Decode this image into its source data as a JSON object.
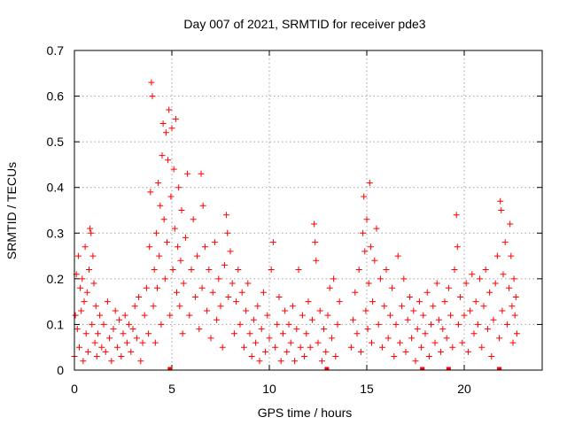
{
  "chart_data": {
    "type": "scatter",
    "title": "Day 007 of 2021, SRMTID for receiver pde3",
    "xlabel": "GPS time / hours",
    "ylabel": "SRMTID / TECUs",
    "xlim": [
      0,
      24
    ],
    "ylim": [
      0,
      0.7
    ],
    "xticks": [
      0,
      5,
      10,
      15,
      20
    ],
    "yticks": [
      0,
      0.1,
      0.2,
      0.3,
      0.4,
      0.5,
      0.6,
      0.7
    ],
    "grid": true,
    "marker": "plus",
    "color": "#ff0000",
    "series": [
      {
        "name": "SRMTID",
        "points": [
          [
            0.0,
            0.03
          ],
          [
            0.05,
            0.12
          ],
          [
            0.1,
            0.21
          ],
          [
            0.15,
            0.09
          ],
          [
            0.2,
            0.25
          ],
          [
            0.25,
            0.05
          ],
          [
            0.3,
            0.18
          ],
          [
            0.35,
            0.13
          ],
          [
            0.4,
            0.2
          ],
          [
            0.45,
            0.02
          ],
          [
            0.5,
            0.15
          ],
          [
            0.55,
            0.27
          ],
          [
            0.6,
            0.08
          ],
          [
            0.65,
            0.17
          ],
          [
            0.7,
            0.04
          ],
          [
            0.75,
            0.22
          ],
          [
            0.8,
            0.31
          ],
          [
            0.85,
            0.3
          ],
          [
            0.9,
            0.1
          ],
          [
            0.95,
            0.25
          ],
          [
            1.0,
            0.19
          ],
          [
            1.05,
            0.06
          ],
          [
            1.1,
            0.14
          ],
          [
            1.15,
            0.03
          ],
          [
            1.2,
            0.08
          ],
          [
            1.3,
            0.12
          ],
          [
            1.4,
            0.05
          ],
          [
            1.5,
            0.1
          ],
          [
            1.6,
            0.04
          ],
          [
            1.7,
            0.15
          ],
          [
            1.8,
            0.07
          ],
          [
            1.9,
            0.02
          ],
          [
            2.0,
            0.09
          ],
          [
            2.1,
            0.13
          ],
          [
            2.2,
            0.05
          ],
          [
            2.3,
            0.11
          ],
          [
            2.4,
            0.03
          ],
          [
            2.5,
            0.08
          ],
          [
            2.6,
            0.12
          ],
          [
            2.7,
            0.06
          ],
          [
            2.8,
            0.1
          ],
          [
            2.9,
            0.04
          ],
          [
            3.0,
            0.09
          ],
          [
            3.1,
            0.14
          ],
          [
            3.2,
            0.07
          ],
          [
            3.3,
            0.16
          ],
          [
            3.4,
            0.02
          ],
          [
            3.5,
            0.06
          ],
          [
            3.6,
            0.12
          ],
          [
            3.7,
            0.18
          ],
          [
            3.8,
            0.08
          ],
          [
            3.85,
            0.27
          ],
          [
            3.9,
            0.39
          ],
          [
            3.95,
            0.63
          ],
          [
            4.0,
            0.6
          ],
          [
            4.05,
            0.14
          ],
          [
            4.1,
            0.22
          ],
          [
            4.15,
            0.06
          ],
          [
            4.2,
            0.3
          ],
          [
            4.25,
            0.18
          ],
          [
            4.3,
            0.41
          ],
          [
            4.35,
            0.25
          ],
          [
            4.4,
            0.36
          ],
          [
            4.45,
            0.1
          ],
          [
            4.5,
            0.47
          ],
          [
            4.55,
            0.54
          ],
          [
            4.6,
            0.33
          ],
          [
            4.65,
            0.2
          ],
          [
            4.7,
            0.52
          ],
          [
            4.75,
            0.28
          ],
          [
            4.8,
            0.46
          ],
          [
            4.85,
            0.57
          ],
          [
            4.9,
            0.12
          ],
          [
            4.95,
            0.38
          ],
          [
            5.0,
            0.53
          ],
          [
            5.05,
            0.22
          ],
          [
            5.1,
            0.44
          ],
          [
            5.15,
            0.31
          ],
          [
            5.2,
            0.55
          ],
          [
            5.25,
            0.17
          ],
          [
            5.3,
            0.27
          ],
          [
            5.35,
            0.4
          ],
          [
            5.4,
            0.14
          ],
          [
            5.45,
            0.24
          ],
          [
            5.5,
            0.35
          ],
          [
            5.55,
            0.08
          ],
          [
            5.6,
            0.19
          ],
          [
            5.7,
            0.29
          ],
          [
            5.8,
            0.43
          ],
          [
            5.9,
            0.12
          ],
          [
            6.0,
            0.22
          ],
          [
            6.1,
            0.33
          ],
          [
            6.2,
            0.16
          ],
          [
            6.3,
            0.25
          ],
          [
            6.4,
            0.09
          ],
          [
            6.5,
            0.43
          ],
          [
            6.55,
            0.18
          ],
          [
            6.6,
            0.36
          ],
          [
            6.7,
            0.27
          ],
          [
            6.8,
            0.13
          ],
          [
            6.9,
            0.22
          ],
          [
            7.0,
            0.07
          ],
          [
            7.1,
            0.17
          ],
          [
            7.2,
            0.28
          ],
          [
            7.3,
            0.11
          ],
          [
            7.4,
            0.2
          ],
          [
            7.5,
            0.14
          ],
          [
            7.6,
            0.05
          ],
          [
            7.7,
            0.23
          ],
          [
            7.8,
            0.34
          ],
          [
            7.85,
            0.3
          ],
          [
            7.9,
            0.16
          ],
          [
            8.0,
            0.26
          ],
          [
            8.1,
            0.19
          ],
          [
            8.2,
            0.08
          ],
          [
            8.3,
            0.15
          ],
          [
            8.4,
            0.22
          ],
          [
            8.5,
            0.1
          ],
          [
            8.6,
            0.17
          ],
          [
            8.7,
            0.05
          ],
          [
            8.8,
            0.13
          ],
          [
            8.9,
            0.19
          ],
          [
            9.0,
            0.08
          ],
          [
            9.1,
            0.03
          ],
          [
            9.2,
            0.11
          ],
          [
            9.3,
            0.06
          ],
          [
            9.4,
            0.14
          ],
          [
            9.5,
            0.02
          ],
          [
            9.6,
            0.09
          ],
          [
            9.7,
            0.17
          ],
          [
            9.8,
            0.04
          ],
          [
            9.9,
            0.12
          ],
          [
            10.0,
            0.07
          ],
          [
            10.1,
            0.22
          ],
          [
            10.2,
            0.28
          ],
          [
            10.3,
            0.05
          ],
          [
            10.4,
            0.1
          ],
          [
            10.5,
            0.16
          ],
          [
            10.6,
            0.02
          ],
          [
            10.7,
            0.08
          ],
          [
            10.8,
            0.13
          ],
          [
            10.9,
            0.04
          ],
          [
            11.0,
            0.1
          ],
          [
            11.1,
            0.06
          ],
          [
            11.2,
            0.14
          ],
          [
            11.3,
            0.02
          ],
          [
            11.4,
            0.09
          ],
          [
            11.5,
            0.22
          ],
          [
            11.6,
            0.05
          ],
          [
            11.7,
            0.12
          ],
          [
            11.8,
            0.03
          ],
          [
            11.9,
            0.08
          ],
          [
            12.0,
            0.15
          ],
          [
            12.1,
            0.05
          ],
          [
            12.2,
            0.11
          ],
          [
            12.3,
            0.32
          ],
          [
            12.35,
            0.28
          ],
          [
            12.4,
            0.24
          ],
          [
            12.5,
            0.06
          ],
          [
            12.6,
            0.13
          ],
          [
            12.7,
            0.02
          ],
          [
            12.8,
            0.09
          ],
          [
            12.9,
            0.04
          ],
          [
            13.0,
            0.12
          ],
          [
            13.1,
            0.18
          ],
          [
            13.2,
            0.07
          ],
          [
            13.3,
            0.2
          ],
          [
            13.4,
            0.03
          ],
          [
            13.5,
            0.1
          ],
          [
            13.6,
            0.15
          ],
          [
            14.2,
            0.05
          ],
          [
            14.3,
            0.11
          ],
          [
            14.4,
            0.17
          ],
          [
            14.5,
            0.08
          ],
          [
            14.6,
            0.22
          ],
          [
            14.7,
            0.04
          ],
          [
            14.8,
            0.3
          ],
          [
            14.85,
            0.38
          ],
          [
            14.9,
            0.26
          ],
          [
            14.95,
            0.13
          ],
          [
            15.0,
            0.33
          ],
          [
            15.05,
            0.09
          ],
          [
            15.1,
            0.19
          ],
          [
            15.15,
            0.41
          ],
          [
            15.2,
            0.27
          ],
          [
            15.25,
            0.06
          ],
          [
            15.3,
            0.15
          ],
          [
            15.4,
            0.24
          ],
          [
            15.5,
            0.31
          ],
          [
            15.6,
            0.1
          ],
          [
            15.7,
            0.2
          ],
          [
            15.8,
            0.05
          ],
          [
            15.9,
            0.14
          ],
          [
            16.0,
            0.22
          ],
          [
            16.1,
            0.07
          ],
          [
            16.2,
            0.12
          ],
          [
            16.3,
            0.18
          ],
          [
            16.4,
            0.03
          ],
          [
            16.5,
            0.1
          ],
          [
            16.6,
            0.25
          ],
          [
            16.7,
            0.06
          ],
          [
            16.8,
            0.14
          ],
          [
            16.9,
            0.2
          ],
          [
            17.0,
            0.04
          ],
          [
            17.1,
            0.11
          ],
          [
            17.2,
            0.16
          ],
          [
            17.3,
            0.07
          ],
          [
            17.4,
            0.13
          ],
          [
            17.5,
            0.02
          ],
          [
            17.6,
            0.09
          ],
          [
            17.7,
            0.15
          ],
          [
            17.8,
            0.05
          ],
          [
            17.9,
            0.12
          ],
          [
            18.0,
            0.08
          ],
          [
            18.1,
            0.17
          ],
          [
            18.2,
            0.03
          ],
          [
            18.3,
            0.1
          ],
          [
            18.4,
            0.14
          ],
          [
            18.5,
            0.06
          ],
          [
            18.6,
            0.19
          ],
          [
            18.7,
            0.11
          ],
          [
            18.8,
            0.04
          ],
          [
            18.9,
            0.09
          ],
          [
            19.0,
            0.15
          ],
          [
            19.1,
            0.07
          ],
          [
            19.2,
            0.18
          ],
          [
            19.3,
            0.12
          ],
          [
            19.4,
            0.05
          ],
          [
            19.5,
            0.22
          ],
          [
            19.6,
            0.34
          ],
          [
            19.65,
            0.27
          ],
          [
            19.7,
            0.1
          ],
          [
            19.8,
            0.16
          ],
          [
            19.9,
            0.06
          ],
          [
            20.0,
            0.12
          ],
          [
            20.1,
            0.19
          ],
          [
            20.2,
            0.04
          ],
          [
            20.3,
            0.13
          ],
          [
            20.4,
            0.21
          ],
          [
            20.5,
            0.08
          ],
          [
            20.6,
            0.15
          ],
          [
            20.7,
            0.1
          ],
          [
            20.8,
            0.2
          ],
          [
            20.9,
            0.05
          ],
          [
            21.0,
            0.14
          ],
          [
            21.1,
            0.22
          ],
          [
            21.2,
            0.09
          ],
          [
            21.3,
            0.17
          ],
          [
            21.4,
            0.03
          ],
          [
            21.5,
            0.11
          ],
          [
            21.6,
            0.19
          ],
          [
            21.7,
            0.25
          ],
          [
            21.8,
            0.07
          ],
          [
            21.85,
            0.37
          ],
          [
            21.9,
            0.35
          ],
          [
            21.95,
            0.13
          ],
          [
            22.0,
            0.21
          ],
          [
            22.1,
            0.28
          ],
          [
            22.2,
            0.1
          ],
          [
            22.3,
            0.18
          ],
          [
            22.35,
            0.32
          ],
          [
            22.4,
            0.25
          ],
          [
            22.45,
            0.14
          ],
          [
            22.5,
            0.06
          ],
          [
            22.55,
            0.2
          ],
          [
            22.6,
            0.12
          ],
          [
            22.65,
            0.16
          ],
          [
            22.7,
            0.08
          ]
        ]
      }
    ],
    "zero_markers_x": [
      4.9,
      12.95,
      17.85,
      19.2,
      21.8
    ]
  }
}
